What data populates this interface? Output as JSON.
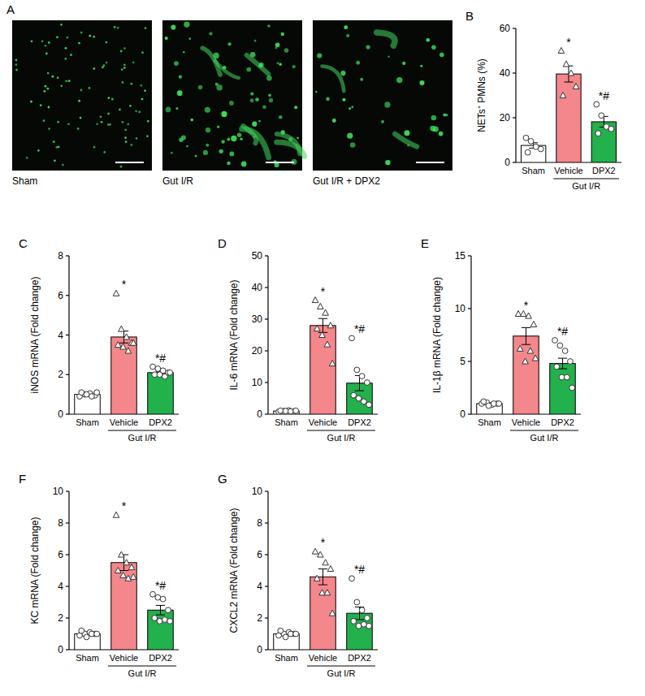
{
  "image_panel": {
    "panel_label": "A",
    "captions": [
      "Sham",
      "Gut I/R",
      "Gut I/R + DPX2"
    ]
  },
  "chart_data": [
    {
      "panel_label": "B",
      "type": "bar",
      "ylabel": "NETs⁺ PMNs (%)",
      "categories": [
        "Sham",
        "Vehicle",
        "DPX2"
      ],
      "group_label": "Gut I/R",
      "values": [
        7.6,
        39.6,
        18.2
      ],
      "errors": [
        1.2,
        3.6,
        2.4
      ],
      "colors": [
        "#ffffff",
        "#f4878b",
        "#22b14c"
      ],
      "points": [
        {
          "marker": "circle",
          "values": [
            11,
            9.5,
            7,
            6,
            4.5
          ]
        },
        {
          "marker": "triangle",
          "values": [
            50,
            44,
            40,
            34,
            30
          ]
        },
        {
          "marker": "circle",
          "values": [
            26,
            21,
            16,
            15,
            13
          ]
        }
      ],
      "annotations": [
        null,
        "*",
        "*#"
      ],
      "ylim": [
        0,
        60
      ],
      "yticks": [
        0,
        20,
        40,
        60
      ]
    },
    {
      "panel_label": "C",
      "type": "bar",
      "ylabel": "iNOS mRNA (Fold change)",
      "categories": [
        "Sham",
        "Vehicle",
        "DPX2"
      ],
      "group_label": "Gut I/R",
      "values": [
        1.0,
        3.9,
        2.1
      ],
      "errors": [
        0.05,
        0.3,
        0.06
      ],
      "colors": [
        "#ffffff",
        "#f4878b",
        "#22b14c"
      ],
      "points": [
        {
          "marker": "circle",
          "values": [
            0.9,
            1.0,
            1.05,
            0.95,
            1.1,
            1.0,
            0.9,
            1.1
          ]
        },
        {
          "marker": "triangle",
          "values": [
            6.1,
            4.3,
            3.9,
            3.6,
            3.5,
            3.4,
            3.2,
            3.6
          ]
        },
        {
          "marker": "circle",
          "values": [
            2.4,
            2.3,
            2.2,
            2.1,
            2.0,
            2.0,
            1.9,
            2.1
          ]
        }
      ],
      "annotations": [
        null,
        "*",
        "*#"
      ],
      "ylim": [
        0,
        8
      ],
      "yticks": [
        0,
        2,
        4,
        6,
        8
      ]
    },
    {
      "panel_label": "D",
      "type": "bar",
      "ylabel": "IL-6 mRNA (Fold change)",
      "categories": [
        "Sham",
        "Vehicle",
        "DPX2"
      ],
      "group_label": "Gut I/R",
      "values": [
        1.0,
        28,
        9.8
      ],
      "errors": [
        0.1,
        2.2,
        2.4
      ],
      "colors": [
        "#ffffff",
        "#f4878b",
        "#22b14c"
      ],
      "points": [
        {
          "marker": "circle",
          "values": [
            0.8,
            1.0,
            1.2,
            0.9,
            1.1,
            1.0,
            0.9,
            1.1
          ]
        },
        {
          "marker": "triangle",
          "values": [
            36,
            34,
            32,
            28,
            27,
            25,
            22,
            16
          ]
        },
        {
          "marker": "circle",
          "values": [
            24,
            14,
            12,
            10,
            6,
            5,
            4,
            3
          ]
        }
      ],
      "annotations": [
        null,
        "*",
        "*#"
      ],
      "ylim": [
        0,
        50
      ],
      "yticks": [
        0,
        10,
        20,
        30,
        40,
        50
      ]
    },
    {
      "panel_label": "E",
      "type": "bar",
      "ylabel": "IL-1β mRNA (Fold change)",
      "categories": [
        "Sham",
        "Vehicle",
        "DPX2"
      ],
      "group_label": "Gut I/R",
      "values": [
        1.0,
        7.4,
        4.8
      ],
      "errors": [
        0.05,
        0.8,
        0.5
      ],
      "colors": [
        "#ffffff",
        "#f4878b",
        "#22b14c"
      ],
      "points": [
        {
          "marker": "circle",
          "values": [
            1,
            1.1,
            0.9,
            1,
            1.2,
            0.8,
            1,
            1
          ]
        },
        {
          "marker": "triangle",
          "values": [
            9.5,
            9.5,
            9.3,
            8.5,
            6.2,
            5,
            6,
            5.3
          ]
        },
        {
          "marker": "circle",
          "values": [
            7,
            6.5,
            6,
            5,
            4.5,
            3.5,
            3.5,
            2.5
          ]
        }
      ],
      "annotations": [
        null,
        "*",
        "*#"
      ],
      "ylim": [
        0,
        15
      ],
      "yticks": [
        0,
        5,
        10,
        15
      ]
    },
    {
      "panel_label": "F",
      "type": "bar",
      "ylabel": "KC mRNA (Fold change)",
      "categories": [
        "Sham",
        "Vehicle",
        "DPX2"
      ],
      "group_label": "Gut I/R",
      "values": [
        1.0,
        5.5,
        2.5
      ],
      "errors": [
        0.05,
        0.5,
        0.3
      ],
      "colors": [
        "#ffffff",
        "#f4878b",
        "#22b14c"
      ],
      "points": [
        {
          "marker": "circle",
          "values": [
            0.9,
            1,
            1.1,
            1,
            1.2,
            0.8,
            1,
            1
          ]
        },
        {
          "marker": "triangle",
          "values": [
            8.5,
            6,
            5.5,
            5.2,
            5,
            4.7,
            4.5,
            4.6
          ]
        },
        {
          "marker": "circle",
          "values": [
            3.5,
            3.3,
            3.2,
            2.5,
            2,
            1.8,
            1.9,
            1.8
          ]
        }
      ],
      "annotations": [
        null,
        "*",
        "*#"
      ],
      "ylim": [
        0,
        10
      ],
      "yticks": [
        0,
        2,
        4,
        6,
        8,
        10
      ]
    },
    {
      "panel_label": "G",
      "type": "bar",
      "ylabel": "CXCL2 mRNA (Fold change)",
      "categories": [
        "Sham",
        "Vehicle",
        "DPX2"
      ],
      "group_label": "Gut I/R",
      "values": [
        1.0,
        4.6,
        2.3
      ],
      "errors": [
        0.05,
        0.5,
        0.4
      ],
      "colors": [
        "#ffffff",
        "#f4878b",
        "#22b14c"
      ],
      "points": [
        {
          "marker": "circle",
          "values": [
            0.9,
            1,
            1.1,
            1,
            1.2,
            0.8,
            1,
            1
          ]
        },
        {
          "marker": "triangle",
          "values": [
            6.2,
            6,
            5.5,
            5.1,
            4.5,
            3.6,
            3.6,
            2.3
          ]
        },
        {
          "marker": "circle",
          "values": [
            4.5,
            3,
            2.5,
            2,
            1.8,
            1.5,
            1.6,
            1.5
          ]
        }
      ],
      "annotations": [
        null,
        "*",
        "*#"
      ],
      "ylim": [
        0,
        10
      ],
      "yticks": [
        0,
        2,
        4,
        6,
        8,
        10
      ]
    }
  ]
}
